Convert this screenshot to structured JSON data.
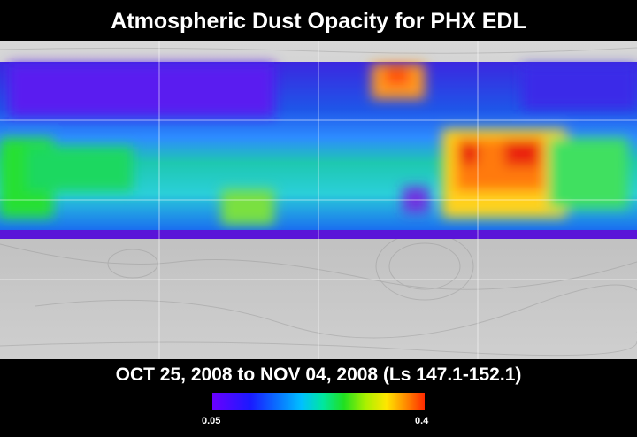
{
  "title": "Atmospheric Dust Opacity for PHX EDL",
  "date_range": "OCT 25, 2008 to NOV 04, 2008 (Ls 147.1-152.1)",
  "colorbar": {
    "min_label": "0.05",
    "max_label": "0.4",
    "colors": [
      "#6a00ff",
      "#1a1aff",
      "#0a6cff",
      "#00c0ff",
      "#00e6a0",
      "#20e020",
      "#a8f000",
      "#ffe600",
      "#ff8c00",
      "#ff2a00"
    ]
  }
}
